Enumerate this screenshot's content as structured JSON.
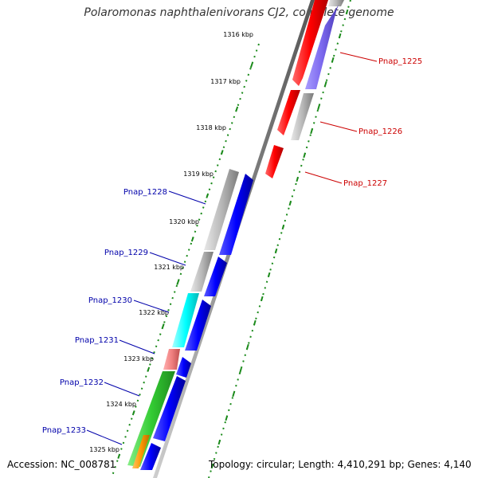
{
  "title": "Polaromonas naphthalenivorans CJ2, complete genome",
  "footer": {
    "accession": "Accession: NC_008781",
    "topology": "Topology: circular; Length: 4,410,291 bp; Genes: 4,140"
  },
  "colors": {
    "backbone": "#888888",
    "tick": "#1a8a1a",
    "forward_label": "#cc0000",
    "reverse_label": "#0000aa",
    "red": "#ff0000",
    "blue": "#0000ff",
    "grey": "#b8b8b8",
    "purple": "#7b68ee",
    "cyan": "#00ffff",
    "salmon": "#f08080",
    "green": "#33cc33",
    "orange": "#ff9900"
  },
  "ticks": [
    {
      "label": "1316 kbp",
      "kbp": 1316
    },
    {
      "label": "1317 kbp",
      "kbp": 1317
    },
    {
      "label": "1318 kbp",
      "kbp": 1318
    },
    {
      "label": "1319 kbp",
      "kbp": 1319
    },
    {
      "label": "1320 kbp",
      "kbp": 1320
    },
    {
      "label": "1321 kbp",
      "kbp": 1321
    },
    {
      "label": "1322 kbp",
      "kbp": 1322
    },
    {
      "label": "1323 kbp",
      "kbp": 1323
    },
    {
      "label": "1324 kbp",
      "kbp": 1324
    },
    {
      "label": "1325 kbp",
      "kbp": 1325
    }
  ],
  "genes": [
    {
      "name": "Pnap_1225",
      "strand": "forward",
      "labeled": true
    },
    {
      "name": "Pnap_1226",
      "strand": "forward",
      "labeled": true
    },
    {
      "name": "Pnap_1227",
      "strand": "forward",
      "labeled": true
    },
    {
      "name": "Pnap_1228",
      "strand": "reverse",
      "labeled": true
    },
    {
      "name": "Pnap_1229",
      "strand": "reverse",
      "labeled": true
    },
    {
      "name": "Pnap_1230",
      "strand": "reverse",
      "labeled": true
    },
    {
      "name": "Pnap_1231",
      "strand": "reverse",
      "labeled": true
    },
    {
      "name": "Pnap_1232",
      "strand": "reverse",
      "labeled": true
    },
    {
      "name": "Pnap_1233",
      "strand": "reverse",
      "labeled": true
    }
  ]
}
